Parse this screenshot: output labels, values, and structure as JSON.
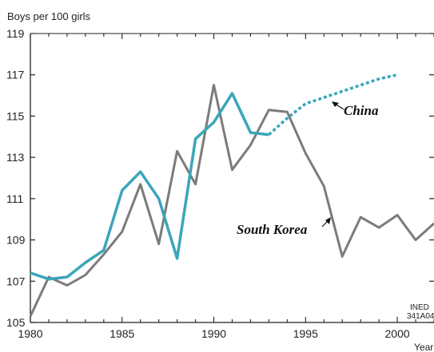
{
  "chart_data": {
    "type": "line",
    "ylabel": "Boys per 100 girls",
    "xlabel": "Year",
    "xlim": [
      1980,
      2002
    ],
    "ylim": [
      105,
      119
    ],
    "x_ticks": [
      1980,
      1985,
      1990,
      1995,
      2000
    ],
    "y_ticks": [
      105,
      107,
      109,
      111,
      113,
      115,
      117,
      119
    ],
    "grid": false,
    "source_note": [
      "INED",
      "341A04"
    ],
    "series": [
      {
        "name": "China",
        "color": "#3aa6b9",
        "style": "solid",
        "x": [
          1980,
          1981,
          1982,
          1983,
          1984,
          1985,
          1986,
          1987,
          1988,
          1989,
          1990,
          1991,
          1992,
          1993
        ],
        "values": [
          107.4,
          107.1,
          107.2,
          107.9,
          108.5,
          111.4,
          112.3,
          111.0,
          108.1,
          113.9,
          114.7,
          116.1,
          114.2,
          114.1
        ]
      },
      {
        "name": "China",
        "color": "#3aa6b9",
        "style": "dotted",
        "x": [
          1993,
          1994,
          1995,
          1996,
          1997,
          1998,
          1999,
          2000
        ],
        "values": [
          114.1,
          114.9,
          115.6,
          115.9,
          116.2,
          116.5,
          116.8,
          117.0
        ]
      },
      {
        "name": "South Korea",
        "color": "#7b7b7b",
        "style": "solid",
        "x": [
          1980,
          1981,
          1982,
          1983,
          1984,
          1985,
          1986,
          1987,
          1988,
          1989,
          1990,
          1991,
          1992,
          1993,
          1994,
          1995,
          1996,
          1997,
          1998,
          1999,
          2000,
          2001,
          2002
        ],
        "values": [
          105.3,
          107.2,
          106.8,
          107.3,
          108.3,
          109.4,
          111.7,
          108.8,
          113.3,
          111.7,
          116.5,
          112.4,
          113.6,
          115.3,
          115.2,
          113.2,
          111.6,
          108.2,
          110.1,
          109.6,
          110.2,
          109.0,
          109.8
        ]
      }
    ],
    "annotations": [
      {
        "text": "China",
        "series": "China"
      },
      {
        "text": "South Korea",
        "series": "South Korea"
      }
    ]
  }
}
